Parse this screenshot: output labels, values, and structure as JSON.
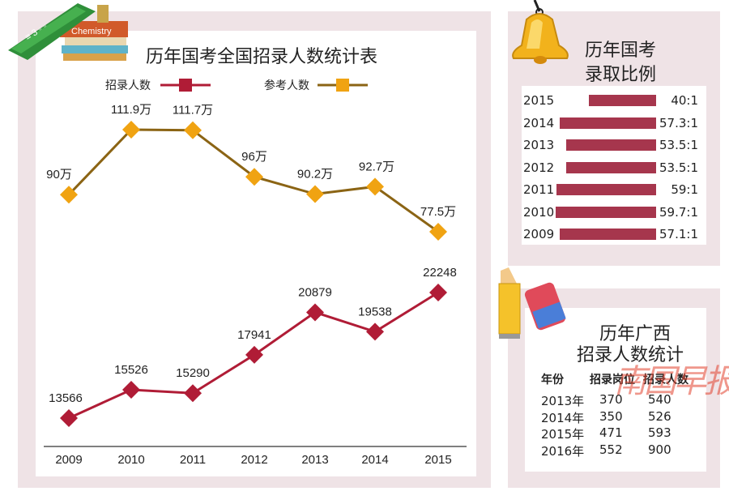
{
  "main": {
    "title": "历年国考全国招录人数统计表"
  },
  "ratio_panel": {
    "title_line1": "历年国考",
    "title_line2": "录取比例",
    "rows": [
      {
        "year": "2015",
        "label": "40:1"
      },
      {
        "year": "2014",
        "label": "57.3:1"
      },
      {
        "year": "2013",
        "label": "53.5:1"
      },
      {
        "year": "2012",
        "label": "53.5:1"
      },
      {
        "year": "2011",
        "label": "59:1"
      },
      {
        "year": "2010",
        "label": "59.7:1"
      },
      {
        "year": "2009",
        "label": "57.1:1"
      }
    ]
  },
  "gx_panel": {
    "title_line1": "历年广西",
    "title_line2": "招录人数统计",
    "headers": [
      "年份",
      "招录岗位",
      "招录人数"
    ],
    "rows": [
      [
        "2013年",
        "370",
        "540"
      ],
      [
        "2014年",
        "350",
        "526"
      ],
      [
        "2015年",
        "471",
        "593"
      ],
      [
        "2016年",
        "552",
        "900"
      ]
    ]
  },
  "decor": {
    "book_text": "Chemistry",
    "watermark": "南国早报"
  },
  "colors": {
    "recruit": "#b01c36",
    "apply": "#f0a312",
    "apply_line": "#8b6414",
    "ratio_bar": "#a6364d",
    "panel_bg": "#efe3e6",
    "watermark": "#e2432f"
  },
  "chart_data": [
    {
      "type": "line",
      "title": "历年国考全国招录人数统计表",
      "x": [
        "2009",
        "2010",
        "2011",
        "2012",
        "2013",
        "2014",
        "2015"
      ],
      "legend_position": "top",
      "series": [
        {
          "name": "招录人数",
          "values": [
            13566,
            15526,
            15290,
            17941,
            20879,
            19538,
            22248
          ],
          "labels": [
            "13566",
            "15526",
            "15290",
            "17941",
            "20879",
            "19538",
            "22248"
          ]
        },
        {
          "name": "参考人数",
          "unit": "万",
          "values": [
            90,
            111.9,
            111.7,
            96,
            90.2,
            92.7,
            77.5
          ],
          "labels": [
            "90万",
            "111.9万",
            "111.7万",
            "96万",
            "90.2万",
            "92.7万",
            "77.5万"
          ]
        }
      ]
    },
    {
      "type": "bar",
      "title": "历年国考录取比例",
      "categories": [
        "2015",
        "2014",
        "2013",
        "2012",
        "2011",
        "2010",
        "2009"
      ],
      "values": [
        40,
        57.3,
        53.5,
        53.5,
        59,
        59.7,
        57.1
      ]
    },
    {
      "type": "table",
      "title": "历年广西招录人数统计",
      "columns": [
        "年份",
        "招录岗位",
        "招录人数"
      ],
      "rows": [
        [
          "2013年",
          370,
          540
        ],
        [
          "2014年",
          350,
          526
        ],
        [
          "2015年",
          471,
          593
        ],
        [
          "2016年",
          552,
          900
        ]
      ]
    }
  ]
}
